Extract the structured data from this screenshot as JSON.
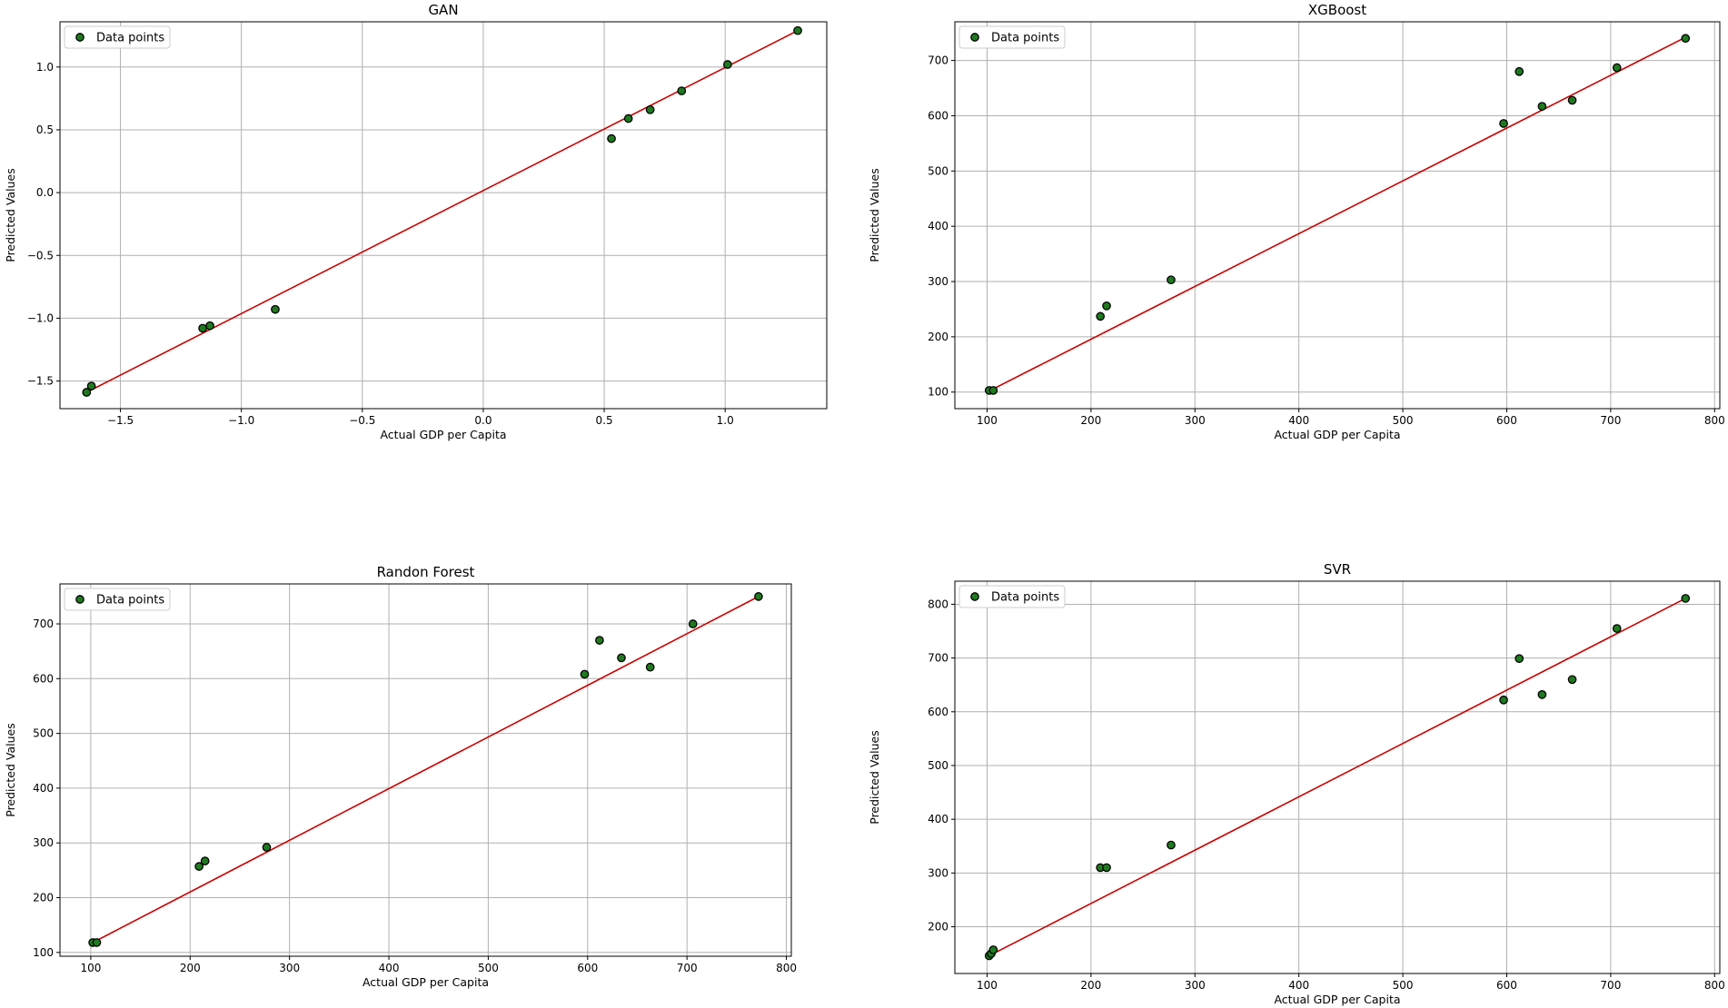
{
  "chart_data": [
    {
      "type": "scatter",
      "title": "GAN",
      "xlabel": "Actual GDP per Capita",
      "ylabel": "Predicted Values",
      "xlim": [
        -1.75,
        1.42
      ],
      "ylim": [
        -1.72,
        1.36
      ],
      "xticks": [
        -1.5,
        -1.0,
        -0.5,
        0.0,
        0.5,
        1.0
      ],
      "xtick_labels": [
        "−1.5",
        "−1.0",
        "−0.5",
        "0.0",
        "0.5",
        "1.0"
      ],
      "yticks": [
        -1.5,
        -1.0,
        -0.5,
        0.0,
        0.5,
        1.0
      ],
      "ytick_labels": [
        "−1.5",
        "−1.0",
        "−0.5",
        "0.0",
        "0.5",
        "1.0"
      ],
      "grid": true,
      "legend": "top-left",
      "series": [
        {
          "name": "Data points",
          "x": [
            -1.64,
            -1.62,
            -1.16,
            -1.13,
            -0.86,
            0.53,
            0.6,
            0.69,
            0.82,
            1.01,
            1.3
          ],
          "y": [
            -1.59,
            -1.54,
            -1.08,
            -1.06,
            -0.93,
            0.43,
            0.59,
            0.66,
            0.81,
            1.02,
            1.29
          ]
        }
      ],
      "fit_line": {
        "x": [
          -1.64,
          1.3
        ],
        "y": [
          -1.59,
          1.29
        ]
      }
    },
    {
      "type": "scatter",
      "title": "XGBoost",
      "xlabel": "Actual GDP per Capita",
      "ylabel": "Predicted Values",
      "xlim": [
        69,
        805
      ],
      "ylim": [
        70,
        770
      ],
      "xticks": [
        100,
        200,
        300,
        400,
        500,
        600,
        700,
        800
      ],
      "xtick_labels": [
        "100",
        "200",
        "300",
        "400",
        "500",
        "600",
        "700",
        "800"
      ],
      "yticks": [
        100,
        200,
        300,
        400,
        500,
        600,
        700
      ],
      "ytick_labels": [
        "100",
        "200",
        "300",
        "400",
        "500",
        "600",
        "700"
      ],
      "grid": true,
      "legend": "top-left",
      "series": [
        {
          "name": "Data points",
          "x": [
            102,
            106,
            209,
            215,
            277,
            597,
            612,
            634,
            663,
            706,
            772
          ],
          "y": [
            103,
            103,
            237,
            256,
            303,
            586,
            680,
            617,
            628,
            687,
            740
          ]
        }
      ],
      "fit_line": {
        "x": [
          102,
          772
        ],
        "y": [
          102,
          742
        ]
      }
    },
    {
      "type": "scatter",
      "title": "Randon Forest",
      "xlabel": "Actual GDP per Capita",
      "ylabel": "Predicted Values",
      "xlim": [
        69,
        805
      ],
      "ylim": [
        93,
        773
      ],
      "xticks": [
        100,
        200,
        300,
        400,
        500,
        600,
        700,
        800
      ],
      "xtick_labels": [
        "100",
        "200",
        "300",
        "400",
        "500",
        "600",
        "700",
        "800"
      ],
      "yticks": [
        100,
        200,
        300,
        400,
        500,
        600,
        700
      ],
      "ytick_labels": [
        "100",
        "200",
        "300",
        "400",
        "500",
        "600",
        "700"
      ],
      "grid": true,
      "legend": "top-left",
      "series": [
        {
          "name": "Data points",
          "x": [
            102,
            106,
            209,
            215,
            277,
            597,
            612,
            634,
            663,
            706,
            772
          ],
          "y": [
            118,
            118,
            257,
            267,
            292,
            608,
            670,
            638,
            621,
            700,
            750
          ]
        }
      ],
      "fit_line": {
        "x": [
          102,
          772
        ],
        "y": [
          118,
          750
        ]
      }
    },
    {
      "type": "scatter",
      "title": "SVR",
      "xlabel": "Actual GDP per Capita",
      "ylabel": "Predicted Values",
      "xlim": [
        69,
        805
      ],
      "ylim": [
        113,
        843
      ],
      "xticks": [
        100,
        200,
        300,
        400,
        500,
        600,
        700,
        800
      ],
      "xtick_labels": [
        "100",
        "200",
        "300",
        "400",
        "500",
        "600",
        "700",
        "800"
      ],
      "yticks": [
        200,
        300,
        400,
        500,
        600,
        700,
        800
      ],
      "ytick_labels": [
        "200",
        "300",
        "400",
        "500",
        "600",
        "700",
        "800"
      ],
      "grid": true,
      "legend": "top-left",
      "series": [
        {
          "name": "Data points",
          "x": [
            102,
            104,
            106,
            209,
            215,
            277,
            597,
            612,
            634,
            663,
            706,
            772
          ],
          "y": [
            146,
            150,
            157,
            310,
            310,
            352,
            622,
            699,
            632,
            660,
            755,
            811
          ]
        }
      ],
      "fit_line": {
        "x": [
          102,
          772
        ],
        "y": [
          146,
          811
        ]
      }
    }
  ],
  "colors": {
    "point_fill": "#1f7a1f",
    "point_edge": "#000000",
    "fit_line": "#cc0000",
    "grid": "#b0b0b0"
  }
}
